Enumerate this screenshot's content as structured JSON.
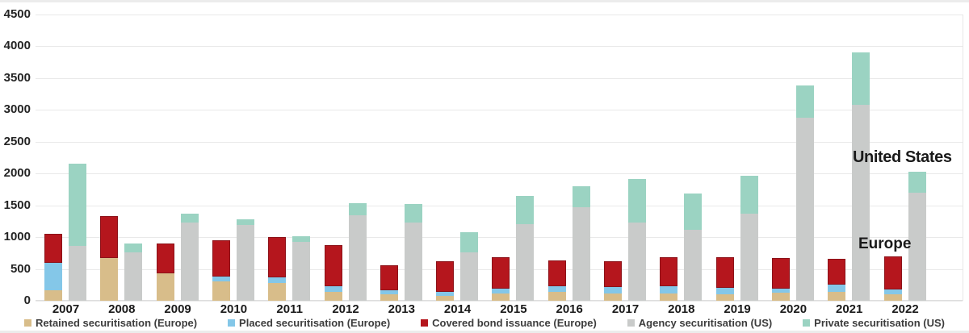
{
  "chart_data": {
    "type": "bar",
    "stacked": true,
    "grid": true,
    "background": "#ffffff",
    "gridline_color": "#e9e9e9",
    "categories": [
      "2007",
      "2008",
      "2009",
      "2010",
      "2011",
      "2012",
      "2013",
      "2014",
      "2015",
      "2016",
      "2017",
      "2018",
      "2019",
      "2020",
      "2021",
      "2022"
    ],
    "bar_groups": [
      "Europe",
      "United States"
    ],
    "series": [
      {
        "name": "Retained securitisation (Europe)",
        "stack": "europe",
        "color": "#d8bd8a",
        "values": [
          160,
          675,
          430,
          310,
          280,
          140,
          100,
          80,
          115,
          135,
          120,
          120,
          100,
          130,
          145,
          100
        ]
      },
      {
        "name": "Placed securitisation (Europe)",
        "stack": "europe",
        "color": "#84c7e8",
        "values": [
          430,
          0,
          0,
          70,
          90,
          85,
          65,
          65,
          80,
          90,
          95,
          110,
          100,
          55,
          105,
          75
        ]
      },
      {
        "name": "Covered bond issuance (Europe)",
        "stack": "europe",
        "color": "#b5161d",
        "values": [
          460,
          660,
          470,
          570,
          630,
          645,
          395,
          475,
          485,
          415,
          405,
          460,
          490,
          485,
          410,
          525
        ]
      },
      {
        "name": "Agency securitisation (US)",
        "stack": "us",
        "color": "#c9cbca",
        "values": [
          860,
          755,
          1230,
          1190,
          920,
          1340,
          1230,
          765,
          1210,
          1465,
          1230,
          1120,
          1370,
          2875,
          3080,
          1700
        ]
      },
      {
        "name": "Private securitisation (US)",
        "stack": "us",
        "color": "#9bd3c2",
        "values": [
          1300,
          150,
          145,
          90,
          95,
          200,
          290,
          310,
          440,
          340,
          690,
          560,
          590,
          505,
          830,
          330
        ]
      }
    ],
    "y_axis": {
      "min": 0,
      "max": 4500,
      "step": 500,
      "ticks": [
        "0",
        "500",
        "1000",
        "1500",
        "2000",
        "2500",
        "3000",
        "3500",
        "4000",
        "4500"
      ]
    },
    "annotations": [
      {
        "text": "United States"
      },
      {
        "text": "Europe"
      }
    ],
    "legend_position": "bottom"
  }
}
